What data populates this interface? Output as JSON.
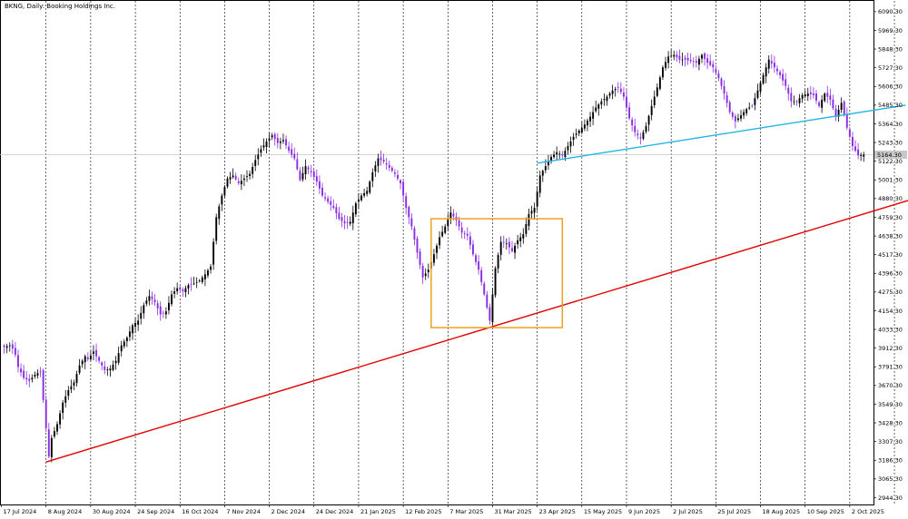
{
  "chart_data": {
    "type": "candlestick",
    "title": "BKNG, Daily:  Booking Holdings Inc.",
    "current_price_label": "5164.30",
    "ylim": [
      2900,
      6160
    ],
    "y_ticks": [
      "6090.30",
      "5969.30",
      "5848.30",
      "5727.30",
      "5606.30",
      "5485.30",
      "5364.30",
      "5243.30",
      "5122.30",
      "5001.30",
      "4880.30",
      "4759.30",
      "4638.30",
      "4517.30",
      "4396.30",
      "4275.30",
      "4154.30",
      "4033.30",
      "3912.30",
      "3791.30",
      "3670.30",
      "3549.30",
      "3428.30",
      "3307.30",
      "3186.30",
      "3065.30",
      "2944.30"
    ],
    "x_ticks": [
      "17 Jul 2024",
      "8 Aug 2024",
      "30 Aug 2024",
      "24 Sep 2024",
      "16 Oct 2024",
      "7 Nov 2024",
      "2 Dec 2024",
      "24 Dec 2024",
      "21 Jan 2025",
      "12 Feb 2025",
      "7 Mar 2025",
      "31 Mar 2025",
      "23 Apr 2025",
      "15 May 2025",
      "9 Jun 2025",
      "2 Jul 2025",
      "25 Jul 2025",
      "18 Aug 2025",
      "10 Sep 2025",
      "2 Oct 2025"
    ],
    "grid": "vertical-dotted",
    "colors": {
      "bull": "#000000",
      "bear": "#8a2be2",
      "support_line": "#e00000",
      "resistance_line": "#1fb4e6",
      "range_box": "#f0a020",
      "price_line": "#c8c8c8"
    },
    "anchors": [
      [
        1,
        3920
      ],
      [
        3,
        3930
      ],
      [
        4,
        3910
      ],
      [
        5,
        3870
      ],
      [
        6,
        3790
      ],
      [
        8,
        3720
      ],
      [
        10,
        3700
      ],
      [
        12,
        3740
      ],
      [
        14,
        3760
      ],
      [
        17,
        3210
      ],
      [
        18,
        3330
      ],
      [
        20,
        3420
      ],
      [
        22,
        3560
      ],
      [
        24,
        3640
      ],
      [
        26,
        3690
      ],
      [
        28,
        3800
      ],
      [
        30,
        3860
      ],
      [
        31,
        3840
      ],
      [
        33,
        3890
      ],
      [
        35,
        3830
      ],
      [
        37,
        3770
      ],
      [
        39,
        3780
      ],
      [
        41,
        3830
      ],
      [
        43,
        3930
      ],
      [
        45,
        3980
      ],
      [
        47,
        4060
      ],
      [
        49,
        4090
      ],
      [
        51,
        4190
      ],
      [
        53,
        4250
      ],
      [
        55,
        4210
      ],
      [
        57,
        4130
      ],
      [
        59,
        4150
      ],
      [
        61,
        4260
      ],
      [
        63,
        4300
      ],
      [
        65,
        4280
      ],
      [
        67,
        4320
      ],
      [
        69,
        4330
      ],
      [
        71,
        4350
      ],
      [
        73,
        4390
      ],
      [
        75,
        4440
      ],
      [
        77,
        4760
      ],
      [
        79,
        4900
      ],
      [
        81,
        5010
      ],
      [
        83,
        5030
      ],
      [
        85,
        4980
      ],
      [
        87,
        5010
      ],
      [
        89,
        5040
      ],
      [
        91,
        5130
      ],
      [
        93,
        5200
      ],
      [
        95,
        5250
      ],
      [
        97,
        5290
      ],
      [
        99,
        5240
      ],
      [
        101,
        5260
      ],
      [
        103,
        5190
      ],
      [
        105,
        5140
      ],
      [
        107,
        5000
      ],
      [
        109,
        5090
      ],
      [
        111,
        5050
      ],
      [
        113,
        4990
      ],
      [
        115,
        4900
      ],
      [
        117,
        4860
      ],
      [
        119,
        4820
      ],
      [
        121,
        4750
      ],
      [
        123,
        4720
      ],
      [
        125,
        4730
      ],
      [
        127,
        4850
      ],
      [
        129,
        4900
      ],
      [
        131,
        4930
      ],
      [
        133,
        5050
      ],
      [
        135,
        5140
      ],
      [
        137,
        5120
      ],
      [
        139,
        5080
      ],
      [
        141,
        5040
      ],
      [
        143,
        4980
      ],
      [
        145,
        4820
      ],
      [
        147,
        4700
      ],
      [
        149,
        4530
      ],
      [
        151,
        4370
      ],
      [
        153,
        4420
      ],
      [
        155,
        4520
      ],
      [
        157,
        4630
      ],
      [
        159,
        4700
      ],
      [
        161,
        4790
      ],
      [
        163,
        4740
      ],
      [
        165,
        4660
      ],
      [
        167,
        4640
      ],
      [
        169,
        4520
      ],
      [
        171,
        4420
      ],
      [
        173,
        4260
      ],
      [
        175,
        4090
      ],
      [
        177,
        4430
      ],
      [
        179,
        4600
      ],
      [
        181,
        4590
      ],
      [
        183,
        4540
      ],
      [
        185,
        4610
      ],
      [
        187,
        4650
      ],
      [
        189,
        4780
      ],
      [
        191,
        4820
      ],
      [
        193,
        5030
      ],
      [
        195,
        5090
      ],
      [
        197,
        5150
      ],
      [
        199,
        5180
      ],
      [
        201,
        5160
      ],
      [
        203,
        5220
      ],
      [
        205,
        5280
      ],
      [
        207,
        5320
      ],
      [
        209,
        5360
      ],
      [
        211,
        5410
      ],
      [
        213,
        5470
      ],
      [
        215,
        5510
      ],
      [
        217,
        5540
      ],
      [
        219,
        5580
      ],
      [
        221,
        5600
      ],
      [
        223,
        5540
      ],
      [
        225,
        5400
      ],
      [
        227,
        5310
      ],
      [
        229,
        5270
      ],
      [
        231,
        5350
      ],
      [
        233,
        5480
      ],
      [
        235,
        5600
      ],
      [
        237,
        5730
      ],
      [
        239,
        5800
      ],
      [
        241,
        5810
      ],
      [
        243,
        5780
      ],
      [
        245,
        5780
      ],
      [
        247,
        5770
      ],
      [
        249,
        5760
      ],
      [
        251,
        5810
      ],
      [
        253,
        5760
      ],
      [
        255,
        5730
      ],
      [
        257,
        5660
      ],
      [
        259,
        5560
      ],
      [
        261,
        5440
      ],
      [
        263,
        5380
      ],
      [
        265,
        5420
      ],
      [
        267,
        5460
      ],
      [
        269,
        5480
      ],
      [
        271,
        5580
      ],
      [
        273,
        5680
      ],
      [
        275,
        5780
      ],
      [
        277,
        5730
      ],
      [
        279,
        5680
      ],
      [
        281,
        5610
      ],
      [
        283,
        5510
      ],
      [
        285,
        5510
      ],
      [
        287,
        5550
      ],
      [
        289,
        5560
      ],
      [
        291,
        5550
      ],
      [
        293,
        5480
      ],
      [
        295,
        5560
      ],
      [
        297,
        5520
      ],
      [
        299,
        5410
      ],
      [
        301,
        5500
      ],
      [
        303,
        5340
      ],
      [
        305,
        5220
      ],
      [
        307,
        5160
      ],
      [
        309,
        5164.3
      ]
    ],
    "drawings": [
      {
        "kind": "trendline",
        "color": "support_line",
        "from": [
          16,
          3175
        ],
        "to": [
          370,
          5115
        ]
      },
      {
        "kind": "trendline",
        "color": "resistance_line",
        "from": [
          192,
          5110
        ],
        "to": [
          324,
          5485
        ]
      },
      {
        "kind": "rectangle",
        "color": "range_box",
        "from": [
          154,
          4045
        ],
        "to": [
          201,
          4750
        ]
      }
    ]
  }
}
